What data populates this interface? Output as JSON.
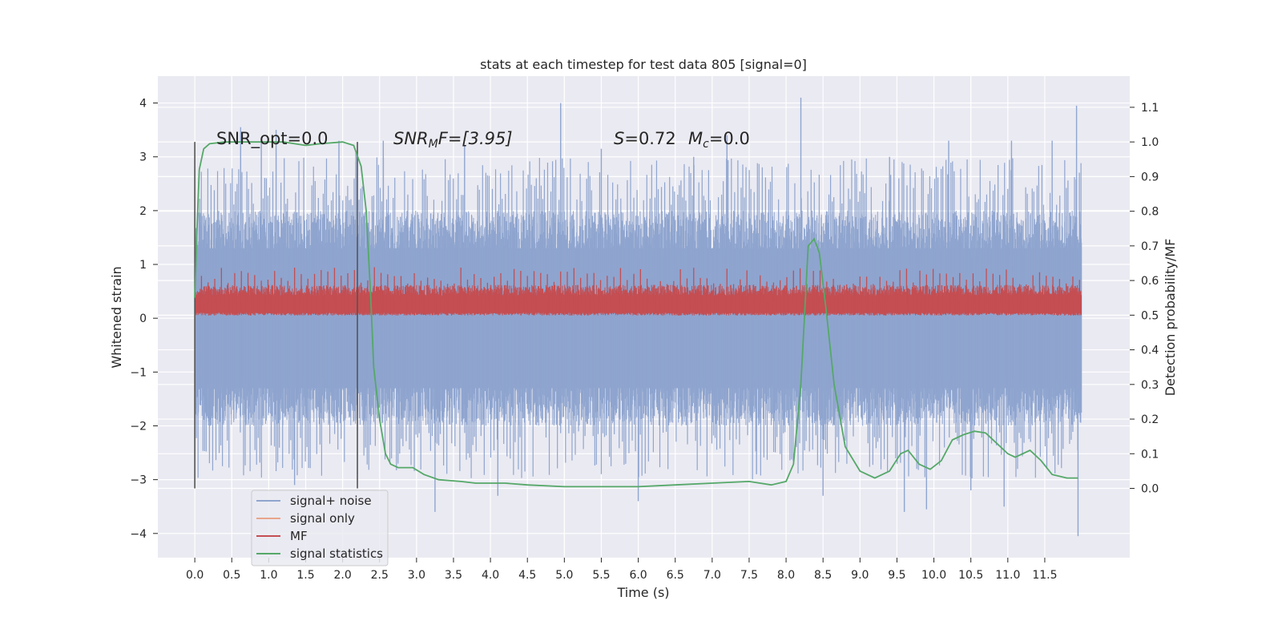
{
  "chart_data": {
    "type": "line",
    "title": "stats at each timestep for test data 805 [signal=0]",
    "xlabel": "Time (s)",
    "ylabel": "Whitened strain",
    "ylabel_right": "Detection probability/MF",
    "xlim": [
      -0.5,
      12.65
    ],
    "ylim": [
      -4.45,
      4.5
    ],
    "ylim_right": [
      -0.2,
      1.19
    ],
    "x_ticks": [
      "0.0",
      "0.5",
      "1.0",
      "1.5",
      "2.0",
      "2.5",
      "3.0",
      "3.5",
      "4.0",
      "4.5",
      "5.0",
      "5.5",
      "6.0",
      "6.5",
      "7.0",
      "7.5",
      "8.0",
      "8.5",
      "9.0",
      "9.5",
      "10.0",
      "10.5",
      "11.0",
      "11.5"
    ],
    "y_ticks": [
      "4",
      "3",
      "2",
      "1",
      "0",
      "−1",
      "−2",
      "−3",
      "−4"
    ],
    "y_ticks_right": [
      "1.1",
      "1.0",
      "0.9",
      "0.8",
      "0.7",
      "0.6",
      "0.5",
      "0.4",
      "0.3",
      "0.2",
      "0.1",
      "0.0"
    ],
    "grid": true,
    "annotations": {
      "snr_opt": "SNR_opt=0.0",
      "snr_mf_sym": "SNR",
      "snr_mf_sub": "M",
      "snr_mf_rest": "F=[3.95]",
      "s_sym": "S",
      "s_rest": "=0.72",
      "mc_sym": "M",
      "mc_sub": "c",
      "mc_rest": "=0.0"
    },
    "vertical_markers": [
      0.0,
      2.2
    ],
    "noise_envelope": {
      "x": [
        0,
        12
      ],
      "typical_range": [
        -2.0,
        2.0
      ],
      "extremes": [
        -4.05,
        4.1
      ]
    },
    "mf_band": {
      "x": [
        0,
        12
      ],
      "range": [
        0.05,
        0.6
      ],
      "peaks_to": 0.95
    },
    "series": [
      {
        "name": "signal+ noise",
        "color": "#8fa5cf",
        "axis": "left",
        "spikes": [
          [
            0.62,
            3.55
          ],
          [
            0.9,
            3.3
          ],
          [
            1.1,
            3.5
          ],
          [
            1.35,
            -3.1
          ],
          [
            1.95,
            3.3
          ],
          [
            2.18,
            3.1
          ],
          [
            2.55,
            3.3
          ],
          [
            3.25,
            -3.6
          ],
          [
            3.65,
            3.2
          ],
          [
            4.1,
            -3.3
          ],
          [
            4.95,
            4.0
          ],
          [
            5.5,
            3.15
          ],
          [
            6.0,
            -3.4
          ],
          [
            6.75,
            3.0
          ],
          [
            7.2,
            3.4
          ],
          [
            7.6,
            -2.9
          ],
          [
            8.2,
            4.1
          ],
          [
            8.5,
            -3.3
          ],
          [
            9.4,
            3.0
          ],
          [
            9.6,
            -3.6
          ],
          [
            9.9,
            -3.55
          ],
          [
            10.2,
            3.3
          ],
          [
            10.5,
            -3.2
          ],
          [
            10.95,
            -3.5
          ],
          [
            11.05,
            3.3
          ],
          [
            11.6,
            3.3
          ],
          [
            11.93,
            3.95
          ],
          [
            11.95,
            -4.05
          ]
        ]
      },
      {
        "name": "signal only",
        "color": "#e8a58b",
        "axis": "left",
        "points": []
      },
      {
        "name": "MF",
        "color": "#c44e52",
        "axis": "right"
      },
      {
        "name": "signal statistics",
        "color": "#55a868",
        "axis": "right",
        "points": [
          [
            0.0,
            0.55
          ],
          [
            0.03,
            0.75
          ],
          [
            0.06,
            0.92
          ],
          [
            0.12,
            0.98
          ],
          [
            0.2,
            0.995
          ],
          [
            0.4,
            1.0
          ],
          [
            0.8,
            1.0
          ],
          [
            1.2,
            1.0
          ],
          [
            1.5,
            0.99
          ],
          [
            1.7,
            0.995
          ],
          [
            2.0,
            1.0
          ],
          [
            2.15,
            0.99
          ],
          [
            2.25,
            0.93
          ],
          [
            2.32,
            0.8
          ],
          [
            2.38,
            0.55
          ],
          [
            2.42,
            0.35
          ],
          [
            2.5,
            0.2
          ],
          [
            2.58,
            0.1
          ],
          [
            2.65,
            0.07
          ],
          [
            2.75,
            0.06
          ],
          [
            2.95,
            0.06
          ],
          [
            3.1,
            0.04
          ],
          [
            3.3,
            0.025
          ],
          [
            3.6,
            0.02
          ],
          [
            3.8,
            0.015
          ],
          [
            4.2,
            0.015
          ],
          [
            4.5,
            0.01
          ],
          [
            5.0,
            0.005
          ],
          [
            5.5,
            0.005
          ],
          [
            6.0,
            0.005
          ],
          [
            6.5,
            0.01
          ],
          [
            7.0,
            0.015
          ],
          [
            7.5,
            0.02
          ],
          [
            7.8,
            0.01
          ],
          [
            8.0,
            0.02
          ],
          [
            8.1,
            0.07
          ],
          [
            8.2,
            0.3
          ],
          [
            8.3,
            0.7
          ],
          [
            8.38,
            0.72
          ],
          [
            8.45,
            0.68
          ],
          [
            8.55,
            0.5
          ],
          [
            8.65,
            0.3
          ],
          [
            8.8,
            0.12
          ],
          [
            9.0,
            0.05
          ],
          [
            9.2,
            0.03
          ],
          [
            9.4,
            0.05
          ],
          [
            9.55,
            0.1
          ],
          [
            9.65,
            0.11
          ],
          [
            9.8,
            0.07
          ],
          [
            9.95,
            0.055
          ],
          [
            10.1,
            0.08
          ],
          [
            10.25,
            0.14
          ],
          [
            10.4,
            0.155
          ],
          [
            10.55,
            0.165
          ],
          [
            10.7,
            0.16
          ],
          [
            10.85,
            0.13
          ],
          [
            11.0,
            0.1
          ],
          [
            11.1,
            0.09
          ],
          [
            11.3,
            0.11
          ],
          [
            11.45,
            0.08
          ],
          [
            11.6,
            0.04
          ],
          [
            11.8,
            0.03
          ],
          [
            11.95,
            0.03
          ]
        ]
      }
    ],
    "legend": {
      "position": "lower-left",
      "entries": [
        "signal+ noise",
        "signal only",
        "MF",
        "signal statistics"
      ]
    }
  }
}
